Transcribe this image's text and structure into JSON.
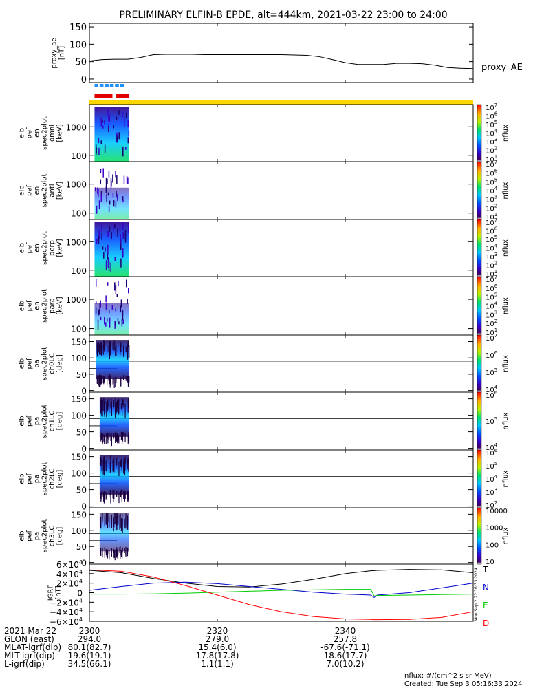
{
  "title": "PRELIMINARY ELFIN-B EPDE, alt=444km, 2021-03-22 23:00 to 24:00",
  "proxy_ae": {
    "ylabel_line1": "proxy_ae",
    "ylabel_line2": "[nT]",
    "series_label": "proxy_AE",
    "yticks": [
      "0",
      "50",
      "100",
      "150"
    ],
    "ylim": [
      -10,
      160
    ],
    "time_minutes": [
      0,
      2,
      4,
      6,
      8,
      10,
      12,
      14,
      16,
      18,
      20,
      22,
      24,
      26,
      28,
      30,
      32,
      34,
      36,
      38,
      40,
      42,
      44,
      46,
      48,
      50,
      52,
      54,
      56,
      58,
      60
    ],
    "values": [
      52,
      56,
      57,
      57,
      62,
      70,
      71,
      71,
      71,
      70,
      70,
      70,
      70,
      70,
      70,
      70,
      69,
      68,
      64,
      56,
      47,
      42,
      42,
      42,
      45,
      45,
      44,
      40,
      33,
      31,
      30
    ]
  },
  "indicator_bars": {
    "blue_segments_minutes": [
      [
        0.8,
        1.4
      ],
      [
        1.6,
        2.2
      ],
      [
        2.4,
        3.0
      ],
      [
        3.2,
        3.8
      ],
      [
        4.0,
        4.6
      ],
      [
        4.8,
        5.4
      ]
    ],
    "red_segments_minutes": [
      [
        0.8,
        3.6
      ],
      [
        4.2,
        6.2
      ]
    ],
    "blue_color": "#1e90ff",
    "red_color": "#e00000",
    "yellow_color": "#ffd700"
  },
  "spectrogram_panels": [
    {
      "label_lines": [
        "elb",
        "pef",
        "en",
        "spec2plot",
        "omni",
        "[keV]"
      ],
      "yticks": [
        "100",
        "1000"
      ],
      "cbar_ticks": [
        "10",
        "10",
        "10",
        "10",
        "10",
        "10",
        "10"
      ],
      "cbar_exps": [
        "1",
        "2",
        "3",
        "4",
        "5",
        "6",
        "7"
      ],
      "cbar_label": "nflux"
    },
    {
      "label_lines": [
        "elb",
        "pef",
        "en",
        "spec2plot",
        "anti",
        "[keV]"
      ],
      "yticks": [
        "100",
        "1000"
      ],
      "cbar_ticks": [
        "10",
        "10",
        "10",
        "10",
        "10",
        "10",
        "10"
      ],
      "cbar_exps": [
        "1",
        "2",
        "3",
        "4",
        "5",
        "6",
        "7"
      ],
      "cbar_label": "nflux"
    },
    {
      "label_lines": [
        "elb",
        "pef",
        "en",
        "spec2plot",
        "perp",
        "[keV]"
      ],
      "yticks": [
        "100",
        "1000"
      ],
      "cbar_ticks": [
        "10",
        "10",
        "10",
        "10",
        "10",
        "10",
        "10"
      ],
      "cbar_exps": [
        "1",
        "2",
        "3",
        "4",
        "5",
        "6",
        "7"
      ],
      "cbar_label": "nflux"
    },
    {
      "label_lines": [
        "elb",
        "pef",
        "en",
        "spec2plot",
        "para",
        "[keV]"
      ],
      "yticks": [
        "100",
        "1000"
      ],
      "cbar_ticks": [
        "10",
        "10",
        "10",
        "10",
        "10",
        "10",
        "10"
      ],
      "cbar_exps": [
        "1",
        "2",
        "3",
        "4",
        "5",
        "6",
        "7"
      ],
      "cbar_label": "nflux"
    }
  ],
  "pitch_panels": [
    {
      "label_lines": [
        "elb",
        "pef",
        "pa",
        "spec2plot",
        "ch0LC",
        "[deg]"
      ],
      "yticks": [
        "0",
        "50",
        "100",
        "150"
      ],
      "cbar_ticks": [
        "10",
        "10",
        "10",
        "10"
      ],
      "cbar_exps": [
        "4",
        "5",
        "6",
        "7"
      ],
      "cbar_label": "nflux"
    },
    {
      "label_lines": [
        "elb",
        "pef",
        "pa",
        "spec2plot",
        "ch1LC",
        "[deg]"
      ],
      "yticks": [
        "0",
        "50",
        "100",
        "150"
      ],
      "cbar_ticks": [
        "10",
        "10",
        "10"
      ],
      "cbar_exps": [
        "4",
        "5",
        "6"
      ],
      "cbar_label": "nflux"
    },
    {
      "label_lines": [
        "elb",
        "pef",
        "pa",
        "spec2plot",
        "ch2LC",
        "[deg]"
      ],
      "yticks": [
        "0",
        "50",
        "100",
        "150"
      ],
      "cbar_ticks": [
        "10",
        "10",
        "10",
        "10",
        "10"
      ],
      "cbar_exps": [
        "2",
        "3",
        "4",
        "5",
        "6"
      ],
      "cbar_label": "nflux"
    },
    {
      "label_lines": [
        "elb",
        "pef",
        "pa",
        "spec2plot",
        "ch3LC",
        "[deg]"
      ],
      "yticks": [
        "0",
        "50",
        "100",
        "150"
      ],
      "cbar_ticks": [
        "10",
        "100",
        "1000",
        "10000"
      ],
      "cbar_exps": [
        "",
        "",
        "",
        ""
      ],
      "cbar_label": "nflux"
    }
  ],
  "igrf": {
    "ylabel_line1": "IGRF",
    "ylabel_line2": "[nT]",
    "yticks": [
      "−6×10",
      "−4×10",
      "−2×10",
      "0",
      "2×10",
      "4×10",
      "6×10"
    ],
    "ytick_exps": [
      "4",
      "4",
      "4",
      "",
      "4",
      "4",
      "4"
    ],
    "ylim": [
      -60000,
      60000
    ],
    "time_minutes": [
      0,
      5,
      10,
      15,
      20,
      25,
      30,
      35,
      40,
      44,
      44.5,
      45,
      50,
      55,
      60
    ],
    "series": [
      {
        "name": "T",
        "color": "#000000",
        "values": [
          47000,
          42000,
          30000,
          20000,
          13000,
          12000,
          18000,
          28000,
          40000,
          46000,
          46500,
          47000,
          49000,
          48000,
          42000
        ]
      },
      {
        "name": "N",
        "color": "#0000cc",
        "values": [
          5000,
          13000,
          20000,
          22000,
          19000,
          13000,
          7000,
          1000,
          -3000,
          -5000,
          -10000,
          -5000,
          0,
          10000,
          20000
        ]
      },
      {
        "name": "E",
        "color": "#00cc00",
        "values": [
          -3000,
          -3000,
          -2500,
          -1000,
          1000,
          3000,
          5000,
          6000,
          7000,
          7000,
          -7000,
          -6000,
          -5000,
          -4000,
          -3000
        ]
      },
      {
        "name": "D",
        "color": "#ff0000",
        "values": [
          48000,
          45000,
          33000,
          15000,
          -5000,
          -25000,
          -40000,
          -50000,
          -55000,
          -56000,
          -56500,
          -56500,
          -56000,
          -52000,
          -40000
        ]
      }
    ]
  },
  "xaxis": {
    "xlim": [
      0,
      60
    ],
    "ticks_minutes": [
      0,
      20,
      40
    ],
    "tick_labels": [
      "2300",
      "2320",
      "2340"
    ],
    "date_label": "2021 Mar 22"
  },
  "ephemeris": [
    {
      "label": "GLON (east)",
      "values": [
        "294.0",
        "279.0",
        "257.8"
      ]
    },
    {
      "label": "MLAT-igrf(dip)",
      "values": [
        "80.1(82.7)",
        "15.4(6.0)",
        "-67.6(-71.1)"
      ]
    },
    {
      "label": "MLT-igrf(dip)",
      "values": [
        "19.6(19.1)",
        "17.8(17.8)",
        "18.6(17.7)"
      ]
    },
    {
      "label": "L-igrf(dip)",
      "values": [
        "34.5(66.1)",
        "1.1(1.1)",
        "7.0(10.2)"
      ]
    }
  ],
  "footer": {
    "units": "nflux: #/(cm^2 s sr MeV)",
    "created": "Created: Tue Sep  3 05:16:33 2024",
    "side_stamp": "Mon Sep  2 22:16:33 2024"
  }
}
